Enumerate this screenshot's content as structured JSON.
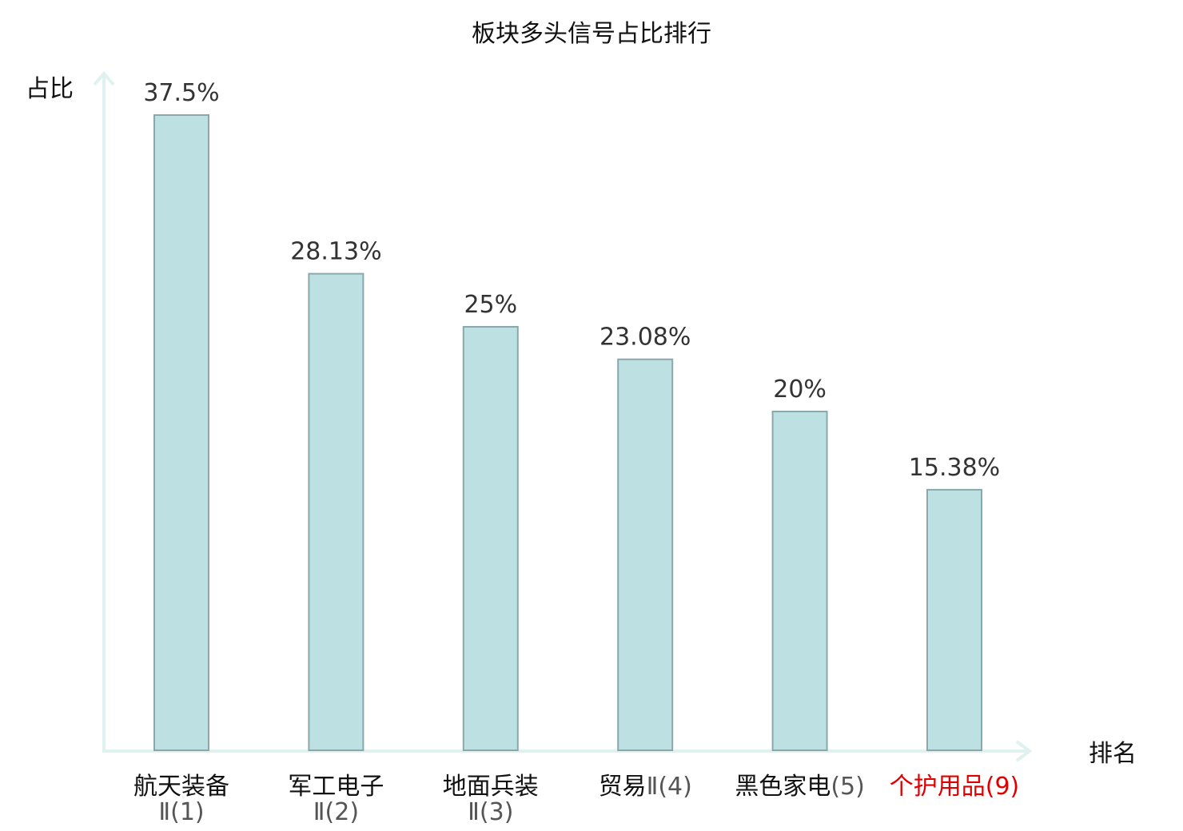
{
  "chart_data": {
    "type": "bar",
    "title": "板块多头信号占比排行",
    "xlabel": "排名",
    "ylabel": "占比",
    "categories": [
      {
        "name": "航天装备",
        "suffix": "Ⅱ(1)",
        "wrap": true,
        "highlight": false
      },
      {
        "name": "军工电子",
        "suffix": "Ⅱ(2)",
        "wrap": true,
        "highlight": false
      },
      {
        "name": "地面兵装",
        "suffix": "Ⅱ(3)",
        "wrap": true,
        "highlight": false
      },
      {
        "name": "贸易",
        "suffix": "Ⅱ(4)",
        "wrap": false,
        "highlight": false
      },
      {
        "name": "黑色家电",
        "suffix": "(5)",
        "wrap": false,
        "highlight": false
      },
      {
        "name": "个护用品",
        "suffix": "(9)",
        "wrap": false,
        "highlight": true
      }
    ],
    "values": [
      37.5,
      28.13,
      25,
      23.08,
      20,
      15.38
    ],
    "value_labels": [
      "37.5%",
      "28.13%",
      "25%",
      "23.08%",
      "20%",
      "15.38%"
    ],
    "ylim": [
      0,
      37.5
    ],
    "grid": false,
    "colors": {
      "bar_fill": "#bde0e3",
      "bar_stroke": "#8aa8ab",
      "axis": "#dff2f0",
      "highlight": "#e00000",
      "text": "#111111",
      "suffix_text": "#555555"
    }
  }
}
